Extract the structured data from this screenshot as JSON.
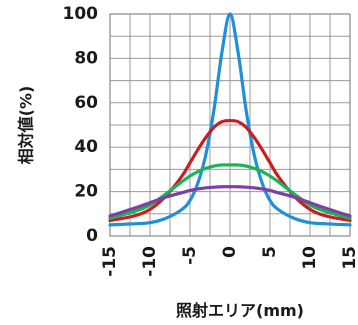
{
  "chart_data": {
    "type": "line",
    "title": "",
    "xlabel": "照射エリア(mm)",
    "ylabel": "相対値(%)",
    "xlim": [
      -15,
      15
    ],
    "ylim": [
      0,
      100
    ],
    "xticks": [
      -15,
      -10,
      -5,
      0,
      5,
      10,
      15
    ],
    "xtick_labels": [
      "-15",
      "-10",
      "-5",
      "0",
      "5",
      "10",
      "15"
    ],
    "yticks": [
      0,
      20,
      40,
      60,
      80,
      100
    ],
    "ytick_labels": [
      "0",
      "20",
      "40",
      "60",
      "80",
      "100"
    ],
    "grid": true,
    "legend": "none",
    "series": [
      {
        "color": "#1f8fd8",
        "x": [
          -15,
          -12,
          -10,
          -8,
          -6,
          -5,
          -4,
          -3,
          -2,
          -1,
          0,
          1,
          2,
          3,
          4,
          5,
          6,
          8,
          10,
          12,
          15
        ],
        "y": [
          5,
          5.5,
          6,
          8,
          12,
          16,
          24,
          37,
          57,
          83,
          100,
          83,
          57,
          37,
          24,
          16,
          12,
          8,
          6,
          5.5,
          5
        ]
      },
      {
        "color": "#c81e1e",
        "x": [
          -15,
          -12,
          -10,
          -8,
          -6,
          -5,
          -4,
          -3,
          -2,
          -1,
          0,
          1,
          2,
          3,
          4,
          5,
          6,
          8,
          10,
          12,
          15
        ],
        "y": [
          7,
          9,
          12,
          18,
          27,
          33,
          39,
          44.5,
          49,
          51.5,
          52,
          51.5,
          49,
          44.5,
          39,
          33,
          27,
          18,
          12,
          9,
          7
        ]
      },
      {
        "color": "#1db15a",
        "x": [
          -15,
          -12,
          -10,
          -8,
          -6,
          -5,
          -4,
          -3,
          -2,
          -1,
          0,
          1,
          2,
          3,
          4,
          5,
          6,
          8,
          10,
          12,
          15
        ],
        "y": [
          8,
          11,
          14,
          19,
          24.5,
          27,
          29,
          30.5,
          31.5,
          32,
          32,
          32,
          31.5,
          30.5,
          29,
          27,
          24.5,
          19,
          14,
          11,
          8
        ]
      },
      {
        "color": "#7b3fa6",
        "x": [
          -15,
          -12,
          -10,
          -8,
          -6,
          -5,
          -4,
          -3,
          -2,
          -1,
          0,
          1,
          2,
          3,
          4,
          5,
          6,
          8,
          10,
          12,
          15
        ],
        "y": [
          9,
          12.5,
          15,
          17.5,
          19.5,
          20.5,
          21.2,
          21.7,
          22,
          22.2,
          22.2,
          22.2,
          22,
          21.7,
          21.2,
          20.5,
          19.5,
          17.5,
          15,
          12.5,
          9
        ]
      }
    ]
  }
}
